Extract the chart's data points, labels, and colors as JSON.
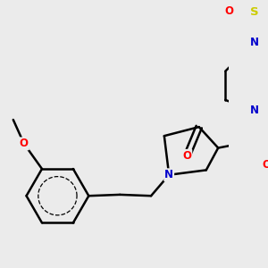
{
  "background_color": "#ebebeb",
  "atom_colors": {
    "C": "#000000",
    "N": "#0000cc",
    "O": "#ff0000",
    "S": "#cccc00"
  },
  "bond_color": "#000000",
  "bond_width": 1.8
}
